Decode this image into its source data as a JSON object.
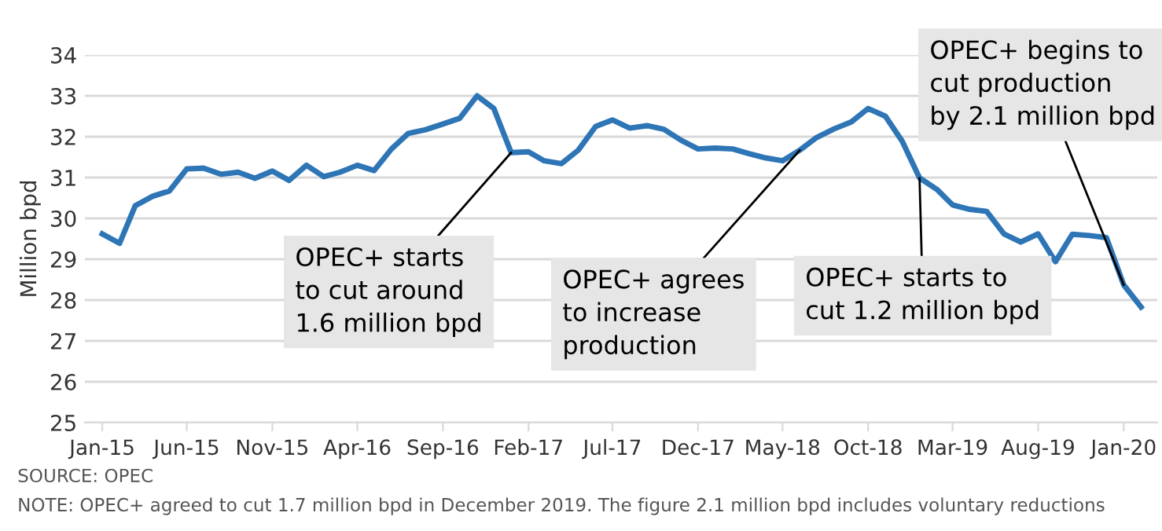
{
  "chart_data": {
    "type": "line",
    "ylabel": "Million bpd",
    "x": [
      "2015-01",
      "2015-02",
      "2015-03",
      "2015-04",
      "2015-05",
      "2015-06",
      "2015-07",
      "2015-08",
      "2015-09",
      "2015-10",
      "2015-11",
      "2015-12",
      "2016-01",
      "2016-02",
      "2016-03",
      "2016-04",
      "2016-05",
      "2016-06",
      "2016-07",
      "2016-08",
      "2016-09",
      "2016-10",
      "2016-11",
      "2016-12",
      "2017-01",
      "2017-02",
      "2017-03",
      "2017-04",
      "2017-05",
      "2017-06",
      "2017-07",
      "2017-08",
      "2017-09",
      "2017-10",
      "2017-11",
      "2017-12",
      "2018-01",
      "2018-02",
      "2018-03",
      "2018-04",
      "2018-05",
      "2018-06",
      "2018-07",
      "2018-08",
      "2018-09",
      "2018-10",
      "2018-11",
      "2018-12",
      "2019-01",
      "2019-02",
      "2019-03",
      "2019-04",
      "2019-05",
      "2019-06",
      "2019-07",
      "2019-08",
      "2019-09",
      "2019-10",
      "2019-11",
      "2019-12",
      "2020-01",
      "2020-02"
    ],
    "series": [
      {
        "color": "#2e75b6",
        "values": [
          29.62,
          29.39,
          30.31,
          30.54,
          30.67,
          31.21,
          31.23,
          31.08,
          31.13,
          30.98,
          31.16,
          30.93,
          31.3,
          31.02,
          31.13,
          31.3,
          31.17,
          31.7,
          32.08,
          32.17,
          32.31,
          32.45,
          33.0,
          32.69,
          31.61,
          31.63,
          31.41,
          31.34,
          31.67,
          32.25,
          32.41,
          32.21,
          32.27,
          32.18,
          31.91,
          31.7,
          31.72,
          31.7,
          31.59,
          31.48,
          31.41,
          31.67,
          31.98,
          32.19,
          32.36,
          32.69,
          32.5,
          31.89,
          30.99,
          30.71,
          30.33,
          30.22,
          30.17,
          29.62,
          29.42,
          29.62,
          28.94,
          29.61,
          29.58,
          29.53,
          28.37,
          27.83
        ]
      }
    ],
    "xlim": [
      "2014-12",
      "2020-03"
    ],
    "xticks": [
      {
        "value": "2015-01",
        "label": "Jan-15"
      },
      {
        "value": "2015-06",
        "label": "Jun-15"
      },
      {
        "value": "2015-11",
        "label": "Nov-15"
      },
      {
        "value": "2016-04",
        "label": "Apr-16"
      },
      {
        "value": "2016-09",
        "label": "Sep-16"
      },
      {
        "value": "2017-02",
        "label": "Feb-17"
      },
      {
        "value": "2017-07",
        "label": "Jul-17"
      },
      {
        "value": "2017-12",
        "label": "Dec-17"
      },
      {
        "value": "2018-05",
        "label": "May-18"
      },
      {
        "value": "2018-10",
        "label": "Oct-18"
      },
      {
        "value": "2019-03",
        "label": "Mar-19"
      },
      {
        "value": "2019-08",
        "label": "Aug-19"
      },
      {
        "value": "2020-01",
        "label": "Jan-20"
      }
    ],
    "ylim": [
      25,
      34
    ],
    "yticks": [
      25,
      26,
      27,
      28,
      29,
      30,
      31,
      32,
      33,
      34
    ],
    "grid": "y",
    "legend": false,
    "marker": "none",
    "line_style": "solid",
    "annotations": [
      {
        "text": "OPEC+ starts\nto cut around\n1.6 million bpd",
        "x": "2017-01",
        "y": 31.61
      },
      {
        "text": "OPEC+ agrees\nto increase\nproduction",
        "x": "2018-06",
        "y": 31.67
      },
      {
        "text": "OPEC+ starts to\ncut 1.2 million bpd",
        "x": "2019-01",
        "y": 30.99
      },
      {
        "text": "OPEC+ begins to\ncut production\nby 2.1 million bpd",
        "x": "2020-01",
        "y": 28.37
      },
      "SOURCE: OPEC",
      "NOTE: OPEC+ agreed to cut 1.7 million bpd in December 2019. The figure 2.1 million bpd includes voluntary reductions"
    ]
  }
}
